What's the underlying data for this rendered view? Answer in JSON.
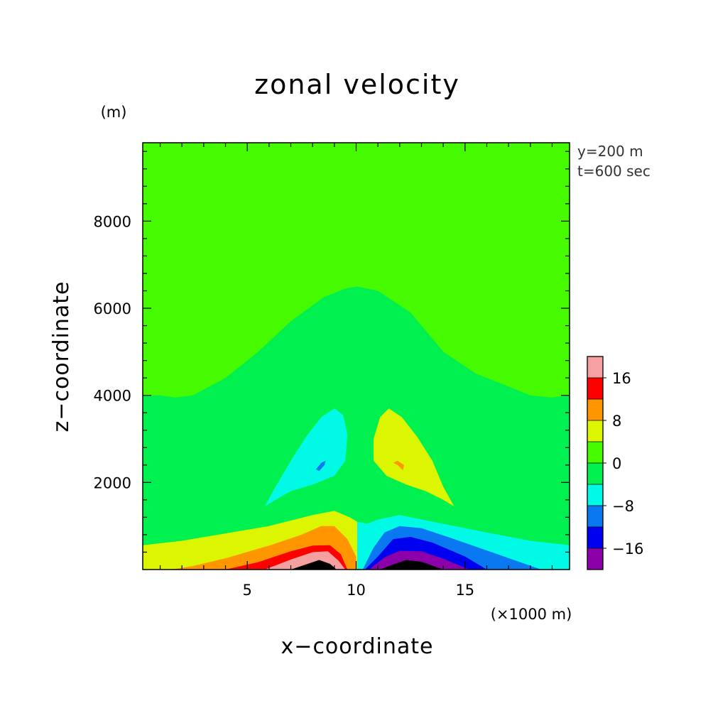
{
  "chart_data": {
    "type": "heatmap",
    "title": "zonal velocity",
    "xlabel": "x−coordinate",
    "ylabel": "z−coordinate",
    "x_unit": "(×1000 m)",
    "y_unit": "(m)",
    "info": [
      "y=200 m",
      "t=600 sec"
    ],
    "xlim": [
      0.2,
      19.8
    ],
    "ylim": [
      0,
      9800
    ],
    "x_ticks": [
      5,
      10,
      15
    ],
    "y_ticks": [
      2000,
      4000,
      6000,
      8000
    ],
    "x_tick_labels": [
      "5",
      "10",
      "15"
    ],
    "y_tick_labels": [
      "2000",
      "4000",
      "6000",
      "8000"
    ],
    "colorbar": {
      "levels": [
        -20,
        -16,
        -12,
        -8,
        -4,
        0,
        4,
        8,
        12,
        16,
        20
      ],
      "colors": [
        "#8b00a8",
        "#0000f0",
        "#0a78f0",
        "#00fae6",
        "#00f050",
        "#46fa00",
        "#dcf500",
        "#ff9600",
        "#ff0000",
        "#f5a0a0"
      ],
      "labels": [
        "−16",
        "−8",
        "0",
        "8",
        "16"
      ],
      "label_values": [
        -16,
        -8,
        0,
        8,
        16
      ]
    },
    "regions": [
      {
        "level": 0,
        "polygon": [
          [
            0.2,
            0
          ],
          [
            19.8,
            0
          ],
          [
            19.8,
            9800
          ],
          [
            0.2,
            9800
          ]
        ]
      },
      {
        "level": -1,
        "polygon": [
          [
            10.05,
            0
          ],
          [
            19.8,
            0
          ],
          [
            19.8,
            9800
          ],
          [
            10.05,
            9800
          ]
        ]
      },
      {
        "level": 0,
        "polygon": [
          [
            10.05,
            6500
          ],
          [
            11,
            6400
          ],
          [
            12.5,
            5900
          ],
          [
            14,
            5000
          ],
          [
            15.5,
            4500
          ],
          [
            17,
            4200
          ],
          [
            18,
            4000
          ],
          [
            19,
            3950
          ],
          [
            19.8,
            4000
          ],
          [
            19.8,
            9800
          ],
          [
            10.05,
            9800
          ]
        ]
      },
      {
        "level": -1,
        "polygon": [
          [
            0.2,
            4000
          ],
          [
            1,
            4000
          ],
          [
            1.7,
            3950
          ],
          [
            2.5,
            4000
          ],
          [
            4,
            4400
          ],
          [
            5.5,
            5000
          ],
          [
            7,
            5700
          ],
          [
            8.5,
            6250
          ],
          [
            9.5,
            6450
          ],
          [
            10.05,
            6500
          ],
          [
            10.05,
            0
          ],
          [
            0.2,
            0
          ]
        ]
      },
      {
        "level": -2,
        "polygon": [
          [
            5.8,
            1450
          ],
          [
            6.3,
            1600
          ],
          [
            7,
            1800
          ],
          [
            8,
            1950
          ],
          [
            9,
            2150
          ],
          [
            9.5,
            2500
          ],
          [
            9.6,
            3100
          ],
          [
            9.4,
            3550
          ],
          [
            9,
            3700
          ],
          [
            8.4,
            3500
          ],
          [
            7.7,
            3050
          ],
          [
            7,
            2500
          ],
          [
            6.3,
            1900
          ]
        ]
      },
      {
        "level": -3,
        "polygon": [
          [
            8.15,
            2300
          ],
          [
            8.4,
            2450
          ],
          [
            8.6,
            2500
          ],
          [
            8.55,
            2400
          ],
          [
            8.3,
            2260
          ]
        ]
      },
      {
        "level": 1,
        "polygon": [
          [
            14.5,
            1450
          ],
          [
            14,
            1600
          ],
          [
            13.2,
            1800
          ],
          [
            12.3,
            1950
          ],
          [
            11.4,
            2150
          ],
          [
            10.8,
            2500
          ],
          [
            10.8,
            3000
          ],
          [
            11.1,
            3500
          ],
          [
            11.5,
            3700
          ],
          [
            12.1,
            3500
          ],
          [
            12.8,
            3050
          ],
          [
            13.5,
            2500
          ],
          [
            14,
            1900
          ]
        ]
      },
      {
        "level": 2,
        "polygon": [
          [
            11.7,
            2450
          ],
          [
            11.9,
            2500
          ],
          [
            12.2,
            2400
          ],
          [
            12.15,
            2280
          ],
          [
            11.9,
            2400
          ]
        ]
      },
      {
        "level": 1,
        "polygon": [
          [
            0.2,
            0
          ],
          [
            0.2,
            560
          ],
          [
            2,
            660
          ],
          [
            4,
            830
          ],
          [
            6,
            1000
          ],
          [
            8,
            1250
          ],
          [
            9,
            1350
          ],
          [
            9.7,
            1200
          ],
          [
            10.05,
            1100
          ],
          [
            10.05,
            0
          ]
        ]
      },
      {
        "level": -2,
        "polygon": [
          [
            10.05,
            0
          ],
          [
            10.05,
            1100
          ],
          [
            10.5,
            1050
          ],
          [
            11,
            1150
          ],
          [
            12,
            1250
          ],
          [
            14,
            1050
          ],
          [
            16,
            850
          ],
          [
            18,
            660
          ],
          [
            19.8,
            560
          ],
          [
            19.8,
            0
          ]
        ]
      },
      {
        "level": 2,
        "polygon": [
          [
            1.5,
            0
          ],
          [
            2.5,
            80
          ],
          [
            4,
            260
          ],
          [
            6,
            550
          ],
          [
            7.5,
            800
          ],
          [
            8.4,
            1000
          ],
          [
            9,
            1000
          ],
          [
            9.6,
            700
          ],
          [
            10,
            300
          ],
          [
            10,
            0
          ]
        ]
      },
      {
        "level": 3,
        "polygon": [
          [
            4,
            0
          ],
          [
            5.5,
            170
          ],
          [
            7,
            420
          ],
          [
            8,
            550
          ],
          [
            8.8,
            560
          ],
          [
            9.3,
            350
          ],
          [
            9.6,
            0
          ]
        ]
      },
      {
        "level": 4,
        "polygon": [
          [
            5.8,
            0
          ],
          [
            7,
            230
          ],
          [
            8,
            400
          ],
          [
            8.7,
            420
          ],
          [
            9.2,
            200
          ],
          [
            9.5,
            0
          ]
        ]
      },
      {
        "level": 5,
        "polygon": [
          [
            7,
            0
          ],
          [
            7.6,
            100
          ],
          [
            8.3,
            220
          ],
          [
            8.8,
            130
          ],
          [
            9.1,
            0
          ]
        ]
      },
      {
        "level": -3,
        "polygon": [
          [
            10.3,
            0
          ],
          [
            10.8,
            500
          ],
          [
            11.3,
            850
          ],
          [
            12,
            1000
          ],
          [
            13,
            950
          ],
          [
            14.5,
            700
          ],
          [
            16.5,
            350
          ],
          [
            18.5,
            0
          ]
        ]
      },
      {
        "level": -4,
        "polygon": [
          [
            10.4,
            0
          ],
          [
            11,
            300
          ],
          [
            11.7,
            700
          ],
          [
            12.5,
            750
          ],
          [
            13.5,
            620
          ],
          [
            15,
            300
          ],
          [
            16,
            0
          ]
        ]
      },
      {
        "level": -5,
        "polygon": [
          [
            10.6,
            0
          ],
          [
            11.3,
            280
          ],
          [
            12,
            430
          ],
          [
            13,
            420
          ],
          [
            14,
            250
          ],
          [
            15.2,
            0
          ]
        ]
      },
      {
        "level": -6,
        "polygon": [
          [
            11.1,
            0
          ],
          [
            11.6,
            100
          ],
          [
            12.3,
            220
          ],
          [
            13,
            180
          ],
          [
            14,
            0
          ]
        ]
      }
    ]
  }
}
